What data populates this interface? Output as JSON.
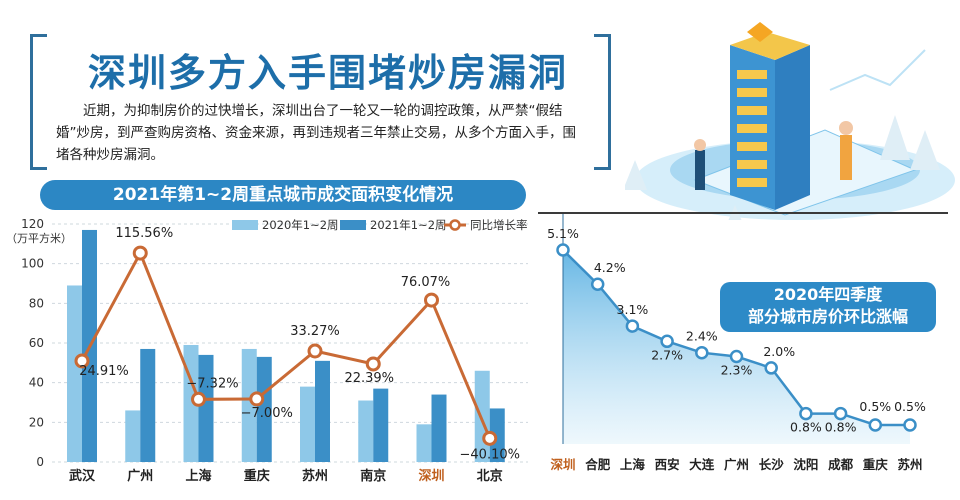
{
  "headline": "深圳多方入手围堵炒房漏洞",
  "intro": "近期，为抑制房价的过快增长，深圳出台了一轮又一轮的调控政策，从严禁“假结婚”炒房，到严查购房资格、资金来源，再到违规者三年禁止交易，从多个方面入手，围堵各种炒房漏洞。",
  "colors": {
    "accent": "#2c87c4",
    "bar2020": "#8ec8e8",
    "bar2021": "#3b8fc7",
    "line": "#c96a35",
    "highlight_label": "#c0601e"
  },
  "chart_data": [
    {
      "type": "bar",
      "title": "2021年第1~2周重点城市成交面积变化情况",
      "ylabel": "（万平方米）",
      "ylim": [
        0,
        120
      ],
      "yticks": [
        0,
        20,
        40,
        60,
        80,
        100,
        120
      ],
      "categories": [
        "武汉",
        "广州",
        "上海",
        "重庆",
        "苏州",
        "南京",
        "深圳",
        "北京"
      ],
      "highlight_category": "深圳",
      "series": [
        {
          "name": "2020年1~2周",
          "kind": "bar",
          "values": [
            89,
            26,
            59,
            57,
            38,
            31,
            19,
            46
          ]
        },
        {
          "name": "2021年1~2周",
          "kind": "bar",
          "values": [
            117,
            57,
            54,
            53,
            51,
            37,
            34,
            27
          ]
        },
        {
          "name": "同比增长率",
          "kind": "line",
          "values": [
            24.91,
            115.56,
            -7.32,
            -7.0,
            33.27,
            22.39,
            76.07,
            -40.1
          ],
          "labels": [
            "24.91%",
            "115.56%",
            "−7.32%",
            "−7.00%",
            "33.27%",
            "22.39%",
            "76.07%",
            "−40.10%"
          ]
        }
      ]
    },
    {
      "type": "area",
      "title": "2020年四季度部分城市房价环比涨幅",
      "title_lines": [
        "2020年四季度",
        "部分城市房价环比涨幅"
      ],
      "categories": [
        "深圳",
        "合肥",
        "上海",
        "西安",
        "大连",
        "广州",
        "长沙",
        "沈阳",
        "成都",
        "重庆",
        "苏州"
      ],
      "highlight_category": "深圳",
      "series": [
        {
          "name": "环比涨幅",
          "values": [
            5.1,
            4.2,
            3.1,
            2.7,
            2.4,
            2.3,
            2.0,
            0.8,
            0.8,
            0.5,
            0.5
          ],
          "labels": [
            "5.1%",
            "4.2%",
            "3.1%",
            "2.7%",
            "2.4%",
            "2.3%",
            "2.0%",
            "0.8%",
            "0.8%",
            "0.5%",
            "0.5%"
          ]
        }
      ]
    }
  ]
}
